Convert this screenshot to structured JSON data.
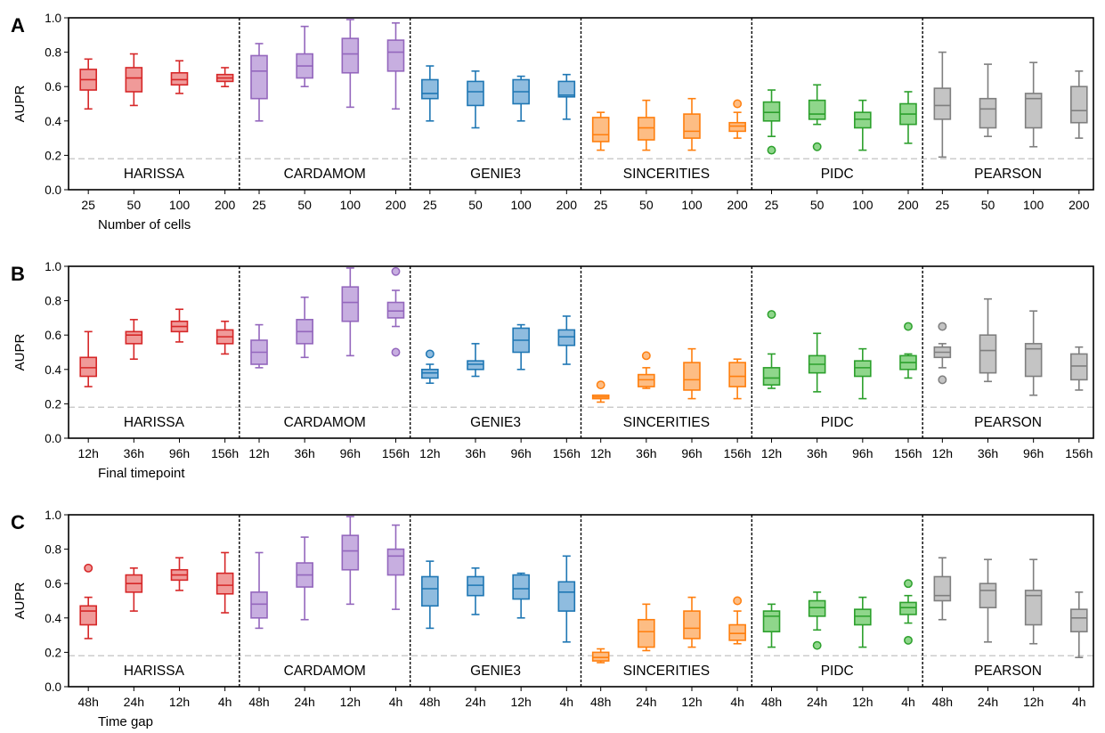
{
  "figure": {
    "ylabel": "AUPR",
    "y_ticks": [
      "0.0",
      "0.2",
      "0.4",
      "0.6",
      "0.8",
      "1.0"
    ],
    "baseline": 0.18,
    "method_colors": {
      "HARISSA": {
        "edge": "#d62728",
        "fill": "#f09a99"
      },
      "CARDAMOM": {
        "edge": "#9467bd",
        "fill": "#c7aee0"
      },
      "GENIE3": {
        "edge": "#1f77b4",
        "fill": "#8fbcdf"
      },
      "SINCERITIES": {
        "edge": "#ff7f0e",
        "fill": "#fdbd84"
      },
      "PIDC": {
        "edge": "#2ca02c",
        "fill": "#8fd68b"
      },
      "PEARSON": {
        "edge": "#7f7f7f",
        "fill": "#c4c4c4"
      }
    }
  },
  "chart_data": [
    {
      "type": "box",
      "panel_label": "A",
      "xlabel": "Number of cells",
      "ylabel": "AUPR",
      "ylim": [
        0,
        1
      ],
      "categories": [
        "25",
        "50",
        "100",
        "200"
      ],
      "methods": [
        {
          "name": "HARISSA",
          "boxes": [
            {
              "whislo": 0.47,
              "q1": 0.58,
              "med": 0.64,
              "q3": 0.7,
              "whishi": 0.76,
              "fliers": []
            },
            {
              "whislo": 0.49,
              "q1": 0.57,
              "med": 0.65,
              "q3": 0.71,
              "whishi": 0.79,
              "fliers": []
            },
            {
              "whislo": 0.56,
              "q1": 0.61,
              "med": 0.64,
              "q3": 0.68,
              "whishi": 0.75,
              "fliers": []
            },
            {
              "whislo": 0.6,
              "q1": 0.63,
              "med": 0.65,
              "q3": 0.67,
              "whishi": 0.71,
              "fliers": []
            }
          ]
        },
        {
          "name": "CARDAMOM",
          "boxes": [
            {
              "whislo": 0.4,
              "q1": 0.53,
              "med": 0.69,
              "q3": 0.78,
              "whishi": 0.85,
              "fliers": []
            },
            {
              "whislo": 0.6,
              "q1": 0.65,
              "med": 0.72,
              "q3": 0.79,
              "whishi": 0.95,
              "fliers": []
            },
            {
              "whislo": 0.48,
              "q1": 0.68,
              "med": 0.79,
              "q3": 0.88,
              "whishi": 0.99,
              "fliers": []
            },
            {
              "whislo": 0.47,
              "q1": 0.69,
              "med": 0.8,
              "q3": 0.87,
              "whishi": 0.97,
              "fliers": []
            }
          ]
        },
        {
          "name": "GENIE3",
          "boxes": [
            {
              "whislo": 0.4,
              "q1": 0.53,
              "med": 0.56,
              "q3": 0.64,
              "whishi": 0.72,
              "fliers": []
            },
            {
              "whislo": 0.36,
              "q1": 0.49,
              "med": 0.57,
              "q3": 0.63,
              "whishi": 0.69,
              "fliers": []
            },
            {
              "whislo": 0.4,
              "q1": 0.5,
              "med": 0.57,
              "q3": 0.64,
              "whishi": 0.66,
              "fliers": []
            },
            {
              "whislo": 0.41,
              "q1": 0.54,
              "med": 0.55,
              "q3": 0.63,
              "whishi": 0.67,
              "fliers": []
            }
          ]
        },
        {
          "name": "SINCERITIES",
          "boxes": [
            {
              "whislo": 0.23,
              "q1": 0.28,
              "med": 0.32,
              "q3": 0.42,
              "whishi": 0.45,
              "fliers": []
            },
            {
              "whislo": 0.23,
              "q1": 0.29,
              "med": 0.36,
              "q3": 0.42,
              "whishi": 0.52,
              "fliers": []
            },
            {
              "whislo": 0.23,
              "q1": 0.3,
              "med": 0.34,
              "q3": 0.44,
              "whishi": 0.53,
              "fliers": []
            },
            {
              "whislo": 0.3,
              "q1": 0.34,
              "med": 0.37,
              "q3": 0.39,
              "whishi": 0.45,
              "fliers": [
                0.5
              ]
            }
          ]
        },
        {
          "name": "PIDC",
          "boxes": [
            {
              "whislo": 0.31,
              "q1": 0.4,
              "med": 0.45,
              "q3": 0.51,
              "whishi": 0.58,
              "fliers": [
                0.23
              ]
            },
            {
              "whislo": 0.38,
              "q1": 0.41,
              "med": 0.44,
              "q3": 0.52,
              "whishi": 0.61,
              "fliers": [
                0.25
              ]
            },
            {
              "whislo": 0.23,
              "q1": 0.36,
              "med": 0.41,
              "q3": 0.45,
              "whishi": 0.52,
              "fliers": []
            },
            {
              "whislo": 0.27,
              "q1": 0.38,
              "med": 0.44,
              "q3": 0.5,
              "whishi": 0.57,
              "fliers": []
            }
          ]
        },
        {
          "name": "PEARSON",
          "boxes": [
            {
              "whislo": 0.19,
              "q1": 0.41,
              "med": 0.49,
              "q3": 0.59,
              "whishi": 0.8,
              "fliers": []
            },
            {
              "whislo": 0.31,
              "q1": 0.36,
              "med": 0.47,
              "q3": 0.53,
              "whishi": 0.73,
              "fliers": []
            },
            {
              "whislo": 0.25,
              "q1": 0.36,
              "med": 0.53,
              "q3": 0.56,
              "whishi": 0.74,
              "fliers": []
            },
            {
              "whislo": 0.3,
              "q1": 0.39,
              "med": 0.46,
              "q3": 0.6,
              "whishi": 0.69,
              "fliers": []
            }
          ]
        }
      ]
    },
    {
      "type": "box",
      "panel_label": "B",
      "xlabel": "Final timepoint",
      "ylabel": "AUPR",
      "ylim": [
        0,
        1
      ],
      "categories": [
        "12h",
        "36h",
        "96h",
        "156h"
      ],
      "methods": [
        {
          "name": "HARISSA",
          "boxes": [
            {
              "whislo": 0.3,
              "q1": 0.36,
              "med": 0.41,
              "q3": 0.47,
              "whishi": 0.62,
              "fliers": []
            },
            {
              "whislo": 0.46,
              "q1": 0.55,
              "med": 0.6,
              "q3": 0.62,
              "whishi": 0.69,
              "fliers": []
            },
            {
              "whislo": 0.56,
              "q1": 0.62,
              "med": 0.65,
              "q3": 0.68,
              "whishi": 0.75,
              "fliers": []
            },
            {
              "whislo": 0.49,
              "q1": 0.55,
              "med": 0.59,
              "q3": 0.63,
              "whishi": 0.68,
              "fliers": []
            }
          ]
        },
        {
          "name": "CARDAMOM",
          "boxes": [
            {
              "whislo": 0.41,
              "q1": 0.43,
              "med": 0.5,
              "q3": 0.57,
              "whishi": 0.66,
              "fliers": []
            },
            {
              "whislo": 0.47,
              "q1": 0.55,
              "med": 0.62,
              "q3": 0.69,
              "whishi": 0.82,
              "fliers": []
            },
            {
              "whislo": 0.48,
              "q1": 0.68,
              "med": 0.79,
              "q3": 0.88,
              "whishi": 0.99,
              "fliers": []
            },
            {
              "whislo": 0.65,
              "q1": 0.7,
              "med": 0.74,
              "q3": 0.79,
              "whishi": 0.86,
              "fliers": [
                0.97,
                0.5
              ]
            }
          ]
        },
        {
          "name": "GENIE3",
          "boxes": [
            {
              "whislo": 0.32,
              "q1": 0.35,
              "med": 0.38,
              "q3": 0.4,
              "whishi": 0.43,
              "fliers": [
                0.49
              ]
            },
            {
              "whislo": 0.36,
              "q1": 0.4,
              "med": 0.43,
              "q3": 0.45,
              "whishi": 0.55,
              "fliers": []
            },
            {
              "whislo": 0.4,
              "q1": 0.5,
              "med": 0.57,
              "q3": 0.64,
              "whishi": 0.66,
              "fliers": []
            },
            {
              "whislo": 0.43,
              "q1": 0.54,
              "med": 0.59,
              "q3": 0.63,
              "whishi": 0.71,
              "fliers": []
            }
          ]
        },
        {
          "name": "SINCERITIES",
          "boxes": [
            {
              "whislo": 0.21,
              "q1": 0.23,
              "med": 0.24,
              "q3": 0.25,
              "whishi": 0.25,
              "fliers": [
                0.31
              ]
            },
            {
              "whislo": 0.29,
              "q1": 0.3,
              "med": 0.34,
              "q3": 0.37,
              "whishi": 0.41,
              "fliers": [
                0.48
              ]
            },
            {
              "whislo": 0.23,
              "q1": 0.28,
              "med": 0.34,
              "q3": 0.44,
              "whishi": 0.52,
              "fliers": []
            },
            {
              "whislo": 0.23,
              "q1": 0.3,
              "med": 0.36,
              "q3": 0.44,
              "whishi": 0.46,
              "fliers": []
            }
          ]
        },
        {
          "name": "PIDC",
          "boxes": [
            {
              "whislo": 0.29,
              "q1": 0.31,
              "med": 0.35,
              "q3": 0.41,
              "whishi": 0.49,
              "fliers": [
                0.72
              ]
            },
            {
              "whislo": 0.27,
              "q1": 0.38,
              "med": 0.43,
              "q3": 0.48,
              "whishi": 0.61,
              "fliers": []
            },
            {
              "whislo": 0.23,
              "q1": 0.36,
              "med": 0.41,
              "q3": 0.45,
              "whishi": 0.52,
              "fliers": []
            },
            {
              "whislo": 0.35,
              "q1": 0.4,
              "med": 0.44,
              "q3": 0.48,
              "whishi": 0.49,
              "fliers": [
                0.65
              ]
            }
          ]
        },
        {
          "name": "PEARSON",
          "boxes": [
            {
              "whislo": 0.41,
              "q1": 0.47,
              "med": 0.5,
              "q3": 0.53,
              "whishi": 0.55,
              "fliers": [
                0.65,
                0.34
              ]
            },
            {
              "whislo": 0.33,
              "q1": 0.38,
              "med": 0.51,
              "q3": 0.6,
              "whishi": 0.81,
              "fliers": []
            },
            {
              "whislo": 0.25,
              "q1": 0.36,
              "med": 0.52,
              "q3": 0.55,
              "whishi": 0.74,
              "fliers": []
            },
            {
              "whislo": 0.28,
              "q1": 0.34,
              "med": 0.42,
              "q3": 0.49,
              "whishi": 0.53,
              "fliers": []
            }
          ]
        }
      ]
    },
    {
      "type": "box",
      "panel_label": "C",
      "xlabel": "Time gap",
      "ylabel": "AUPR",
      "ylim": [
        0,
        1
      ],
      "categories": [
        "48h",
        "24h",
        "12h",
        "4h"
      ],
      "methods": [
        {
          "name": "HARISSA",
          "boxes": [
            {
              "whislo": 0.28,
              "q1": 0.36,
              "med": 0.44,
              "q3": 0.47,
              "whishi": 0.52,
              "fliers": [
                0.69
              ]
            },
            {
              "whislo": 0.44,
              "q1": 0.55,
              "med": 0.6,
              "q3": 0.65,
              "whishi": 0.69,
              "fliers": []
            },
            {
              "whislo": 0.56,
              "q1": 0.62,
              "med": 0.65,
              "q3": 0.68,
              "whishi": 0.75,
              "fliers": []
            },
            {
              "whislo": 0.43,
              "q1": 0.54,
              "med": 0.59,
              "q3": 0.66,
              "whishi": 0.78,
              "fliers": []
            }
          ]
        },
        {
          "name": "CARDAMOM",
          "boxes": [
            {
              "whislo": 0.34,
              "q1": 0.4,
              "med": 0.48,
              "q3": 0.55,
              "whishi": 0.78,
              "fliers": []
            },
            {
              "whislo": 0.39,
              "q1": 0.58,
              "med": 0.65,
              "q3": 0.72,
              "whishi": 0.87,
              "fliers": []
            },
            {
              "whislo": 0.48,
              "q1": 0.68,
              "med": 0.79,
              "q3": 0.88,
              "whishi": 0.99,
              "fliers": []
            },
            {
              "whislo": 0.45,
              "q1": 0.65,
              "med": 0.76,
              "q3": 0.8,
              "whishi": 0.94,
              "fliers": []
            }
          ]
        },
        {
          "name": "GENIE3",
          "boxes": [
            {
              "whislo": 0.34,
              "q1": 0.47,
              "med": 0.57,
              "q3": 0.64,
              "whishi": 0.73,
              "fliers": []
            },
            {
              "whislo": 0.42,
              "q1": 0.53,
              "med": 0.59,
              "q3": 0.64,
              "whishi": 0.69,
              "fliers": []
            },
            {
              "whislo": 0.4,
              "q1": 0.51,
              "med": 0.57,
              "q3": 0.65,
              "whishi": 0.66,
              "fliers": []
            },
            {
              "whislo": 0.26,
              "q1": 0.44,
              "med": 0.55,
              "q3": 0.61,
              "whishi": 0.76,
              "fliers": []
            }
          ]
        },
        {
          "name": "SINCERITIES",
          "boxes": [
            {
              "whislo": 0.14,
              "q1": 0.15,
              "med": 0.17,
              "q3": 0.2,
              "whishi": 0.22,
              "fliers": []
            },
            {
              "whislo": 0.21,
              "q1": 0.23,
              "med": 0.32,
              "q3": 0.39,
              "whishi": 0.48,
              "fliers": []
            },
            {
              "whislo": 0.23,
              "q1": 0.28,
              "med": 0.34,
              "q3": 0.44,
              "whishi": 0.52,
              "fliers": []
            },
            {
              "whislo": 0.25,
              "q1": 0.27,
              "med": 0.31,
              "q3": 0.36,
              "whishi": 0.44,
              "fliers": [
                0.5
              ]
            }
          ]
        },
        {
          "name": "PIDC",
          "boxes": [
            {
              "whislo": 0.23,
              "q1": 0.32,
              "med": 0.41,
              "q3": 0.44,
              "whishi": 0.48,
              "fliers": []
            },
            {
              "whislo": 0.33,
              "q1": 0.41,
              "med": 0.46,
              "q3": 0.5,
              "whishi": 0.55,
              "fliers": [
                0.24
              ]
            },
            {
              "whislo": 0.23,
              "q1": 0.36,
              "med": 0.41,
              "q3": 0.45,
              "whishi": 0.52,
              "fliers": []
            },
            {
              "whislo": 0.37,
              "q1": 0.42,
              "med": 0.46,
              "q3": 0.49,
              "whishi": 0.53,
              "fliers": [
                0.6,
                0.27
              ]
            }
          ]
        },
        {
          "name": "PEARSON",
          "boxes": [
            {
              "whislo": 0.39,
              "q1": 0.5,
              "med": 0.53,
              "q3": 0.64,
              "whishi": 0.75,
              "fliers": []
            },
            {
              "whislo": 0.26,
              "q1": 0.46,
              "med": 0.56,
              "q3": 0.6,
              "whishi": 0.74,
              "fliers": []
            },
            {
              "whislo": 0.25,
              "q1": 0.36,
              "med": 0.53,
              "q3": 0.56,
              "whishi": 0.74,
              "fliers": []
            },
            {
              "whislo": 0.17,
              "q1": 0.32,
              "med": 0.4,
              "q3": 0.45,
              "whishi": 0.55,
              "fliers": []
            }
          ]
        }
      ]
    }
  ]
}
